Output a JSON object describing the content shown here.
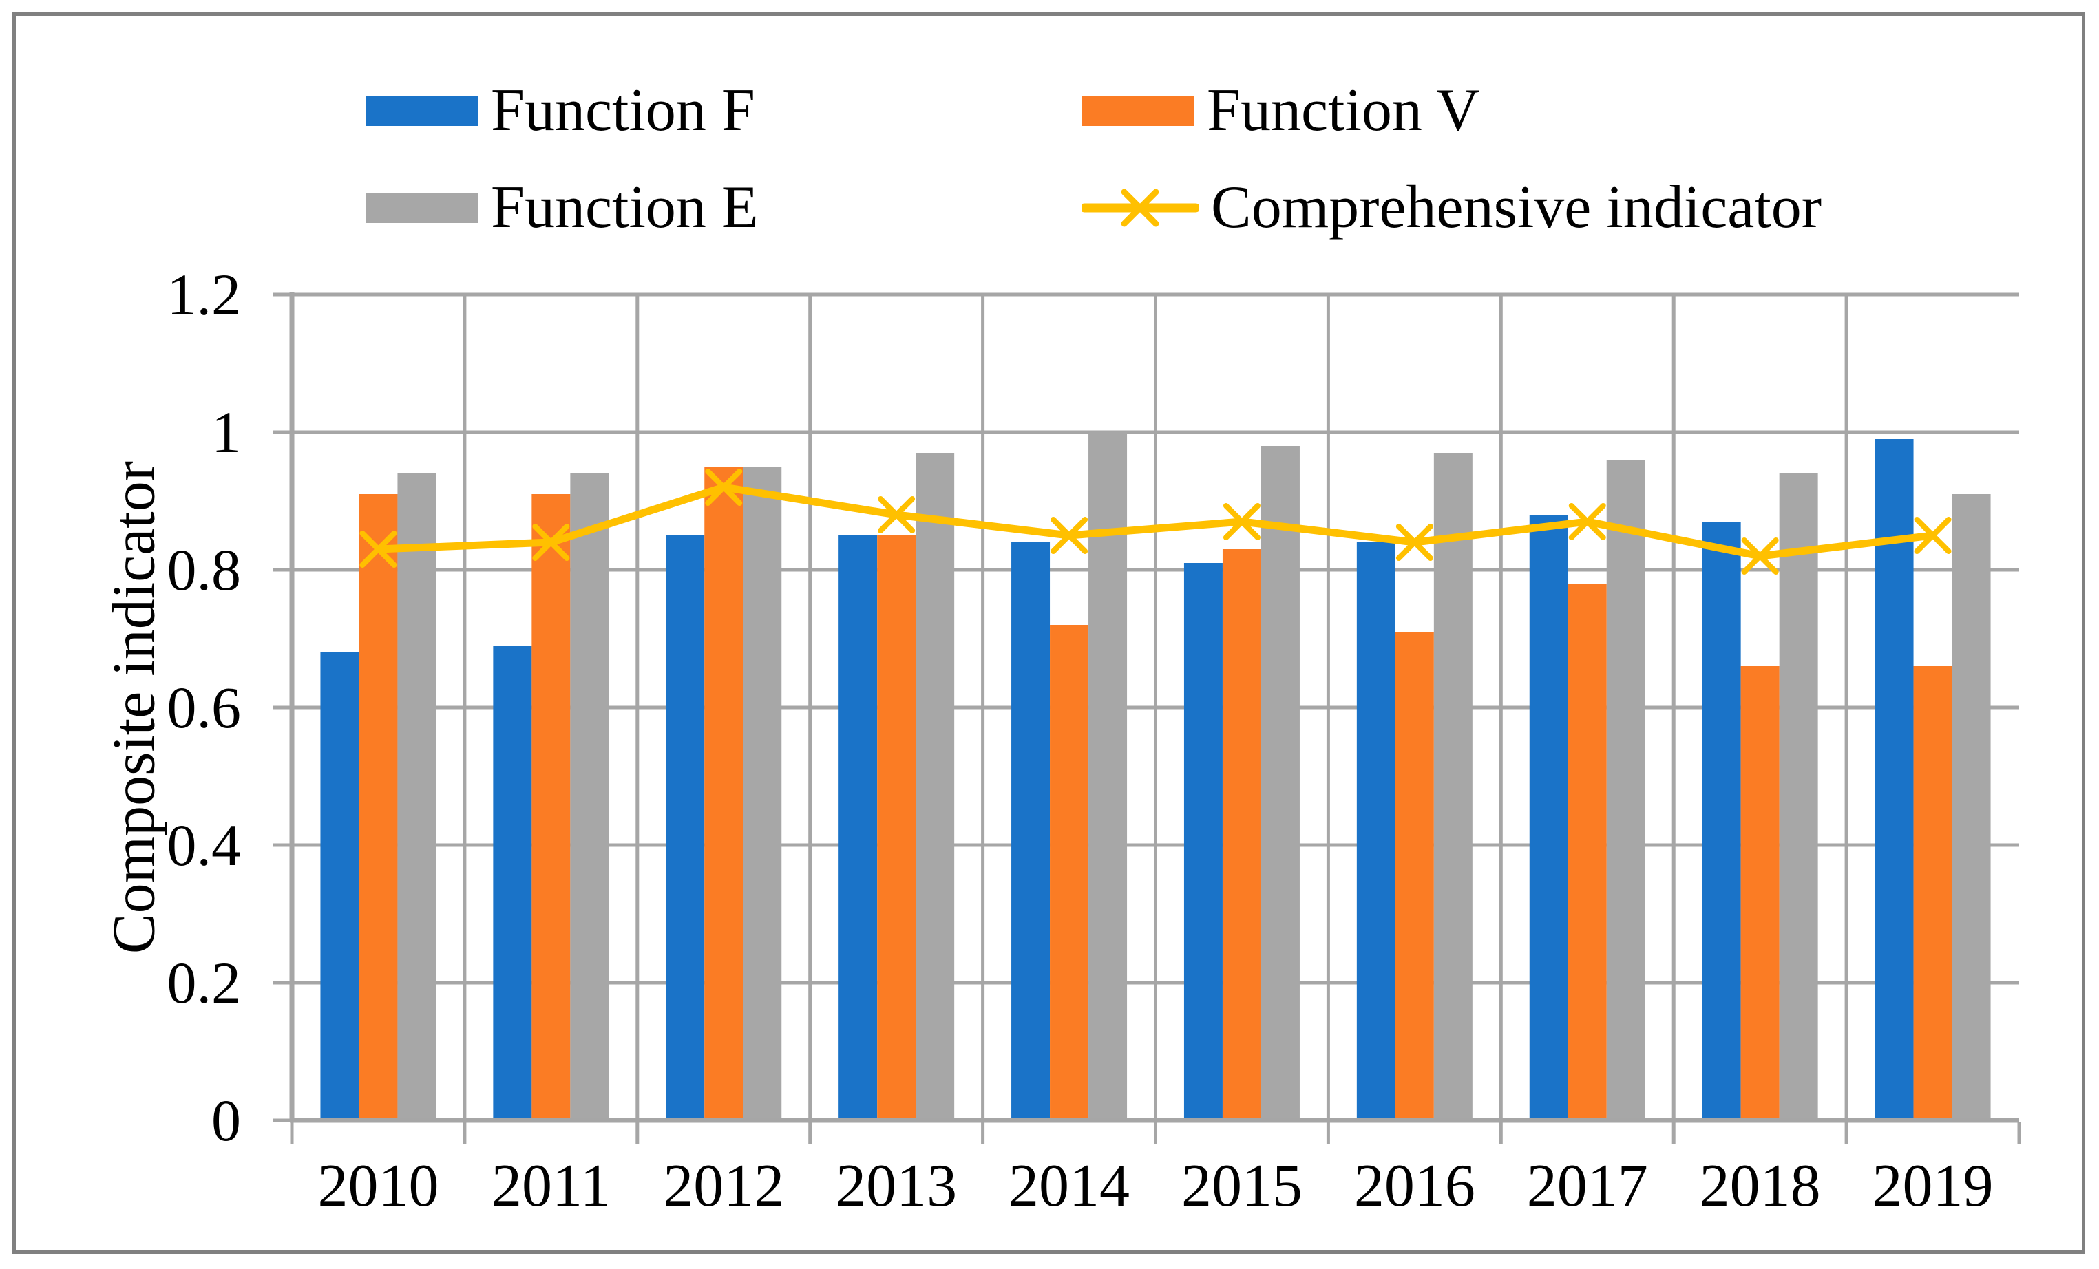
{
  "figure": {
    "background": "#FFFFFF",
    "border_color": "#808080"
  },
  "chart_data": {
    "type": "bar+line",
    "title": "",
    "categories": [
      "2010",
      "2011",
      "2012",
      "2013",
      "2014",
      "2015",
      "2016",
      "2017",
      "2018",
      "2019"
    ],
    "series": [
      {
        "name": "Function F",
        "type": "bar",
        "color": "#1A73C8",
        "values": [
          0.68,
          0.69,
          0.85,
          0.85,
          0.84,
          0.81,
          0.84,
          0.88,
          0.87,
          0.99
        ]
      },
      {
        "name": "Function V",
        "type": "bar",
        "color": "#FB7C24",
        "values": [
          0.91,
          0.91,
          0.95,
          0.85,
          0.72,
          0.83,
          0.71,
          0.78,
          0.66,
          0.66
        ]
      },
      {
        "name": "Function E",
        "type": "bar",
        "color": "#A7A7A7",
        "values": [
          0.94,
          0.94,
          0.95,
          0.97,
          1.0,
          0.98,
          0.97,
          0.96,
          0.94,
          0.91
        ]
      },
      {
        "name": "Comprehensive indicator",
        "type": "line",
        "color": "#FFC000",
        "marker": "x",
        "values": [
          0.83,
          0.84,
          0.92,
          0.88,
          0.85,
          0.87,
          0.84,
          0.87,
          0.82,
          0.85
        ]
      }
    ],
    "xlabel": "",
    "ylabel": "Composite indicator",
    "ylim": [
      0,
      1.2
    ],
    "y_ticks": [
      {
        "value": 0,
        "label": "0"
      },
      {
        "value": 0.2,
        "label": "0.2"
      },
      {
        "value": 0.4,
        "label": "0.4"
      },
      {
        "value": 0.6,
        "label": "0.6"
      },
      {
        "value": 0.8,
        "label": "0.8"
      },
      {
        "value": 1,
        "label": "1"
      },
      {
        "value": 1.2,
        "label": "1.2"
      }
    ],
    "grid": {
      "horizontal": true,
      "vertical": true,
      "color": "#A6A6A6"
    },
    "axis_color": "#A6A6A6",
    "legend_position": "top"
  }
}
